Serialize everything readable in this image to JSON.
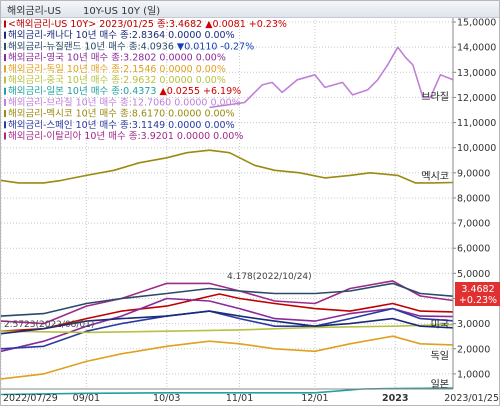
{
  "window": {
    "title": "해외금리-US",
    "subtitle": "10Y-US 10Y (일)"
  },
  "legend": [
    {
      "text": "<해외금리-US 10Y> 2023/01/25 종:3.4682",
      "change": "▲0.0081 +0.23%",
      "color": "#c00000",
      "change_color": "#d00000"
    },
    {
      "text": "해외금리-캐나다 10년 매수 종:2.8364 0.0000 0.00%",
      "change": "",
      "color": "#1a2a7a",
      "change_color": "#1a2a7a"
    },
    {
      "text": "해외금리-뉴질랜드 10년 매수 종:4.0936",
      "change": "▼0.0110 -0.27%",
      "color": "#2a4a6a",
      "change_color": "#1040c0"
    },
    {
      "text": "해외금리-영국 10년 매수 종:3.2802 0.0000 0.00%",
      "change": "",
      "color": "#8a2a9a",
      "change_color": "#8a2a9a"
    },
    {
      "text": "해외금리-독일 10년 매수 종:2.1546 0.0000 0.00%",
      "change": "",
      "color": "#e0a020",
      "change_color": "#e0a020"
    },
    {
      "text": "해외금리-중국 10년 매수 종:2.9632 0.0000 0.00%",
      "change": "",
      "color": "#b8c040",
      "change_color": "#b8c040"
    },
    {
      "text": "해외금리-일본 10년 매수 종:0.4373",
      "change": "▲0.0255 +6.19%",
      "color": "#20a0a0",
      "change_color": "#d00000"
    },
    {
      "text": "해외금리-브라질 10년 매수 종:12.7060 0.0000 0.00%",
      "change": "",
      "color": "#c080d8",
      "change_color": "#c080d8"
    },
    {
      "text": "해외금리-멕시코 10년 매수 종:8.6170 0.0000 0.00%",
      "change": "",
      "color": "#9a8a10",
      "change_color": "#9a8a10"
    },
    {
      "text": "해외금리-스페인 10년 매수 종:3.1149 0.0000 0.00%",
      "change": "",
      "color": "#2a3aa0",
      "change_color": "#2a3aa0"
    },
    {
      "text": "해외금리-이탈리아 10년 매수 종:3.9201 0.0000 0.00%",
      "change": "",
      "color": "#a02a8a",
      "change_color": "#a02a8a"
    }
  ],
  "annotations": {
    "high": "4.178(2022/10/24)",
    "low": "2.5723(2022/08/01)",
    "last_box_value": "3.4682",
    "last_box_change": "+0.23%"
  },
  "chart_data": {
    "type": "line",
    "title": "",
    "y_ticks": [
      "15,0000",
      "14,0000",
      "13,0000",
      "12,0000",
      "11,0000",
      "10,0000",
      "9,0000",
      "8,0000",
      "7,0000",
      "6,0000",
      "5,0000",
      "4,0000",
      "3,0000",
      "2,0000",
      "1,0000"
    ],
    "ylim": [
      0.4,
      15.2
    ],
    "x_ticks": [
      "2022/07/29",
      "09/01",
      "10/03",
      "11/01",
      "12/01",
      "2023",
      "2023/01/25"
    ],
    "grid": true,
    "x_start": "2022-07-29",
    "x_end": "2023-01-25",
    "series": [
      {
        "name": "브라질",
        "color": "#c080d8",
        "x": [
          "2022-10-20",
          "2022-10-27",
          "2022-11-03",
          "2022-11-10",
          "2022-11-14",
          "2022-11-18",
          "2022-11-24",
          "2022-12-01",
          "2022-12-05",
          "2022-12-12",
          "2022-12-16",
          "2022-12-22",
          "2022-12-26",
          "2022-12-30",
          "2023-01-03",
          "2023-01-06",
          "2023-01-09",
          "2023-01-13",
          "2023-01-16",
          "2023-01-20",
          "2023-01-25"
        ],
        "values": [
          11.6,
          11.7,
          11.8,
          12.5,
          12.6,
          12.2,
          12.7,
          12.9,
          12.4,
          12.6,
          12.1,
          12.3,
          12.7,
          13.3,
          14.0,
          13.6,
          13.3,
          12.0,
          12.0,
          12.9,
          12.706
        ]
      },
      {
        "name": "멕시코",
        "color": "#9a8a10",
        "x": [
          "2022-07-29",
          "2022-08-05",
          "2022-08-15",
          "2022-08-22",
          "2022-09-01",
          "2022-09-12",
          "2022-09-22",
          "2022-10-03",
          "2022-10-11",
          "2022-10-20",
          "2022-10-28",
          "2022-11-07",
          "2022-11-15",
          "2022-11-25",
          "2022-12-05",
          "2022-12-15",
          "2022-12-23",
          "2023-01-03",
          "2023-01-10",
          "2023-01-17",
          "2023-01-25"
        ],
        "values": [
          8.7,
          8.6,
          8.6,
          8.7,
          8.9,
          9.1,
          9.4,
          9.6,
          9.8,
          9.9,
          9.8,
          9.3,
          9.1,
          9.0,
          8.8,
          8.9,
          9.0,
          8.9,
          8.6,
          8.6,
          8.617
        ]
      },
      {
        "name": "이탈리아",
        "color": "#a02a8a",
        "x": [
          "2022-07-29",
          "2022-08-15",
          "2022-09-01",
          "2022-09-15",
          "2022-10-03",
          "2022-10-20",
          "2022-11-01",
          "2022-11-15",
          "2022-12-01",
          "2022-12-15",
          "2023-01-01",
          "2023-01-12",
          "2023-01-25"
        ],
        "values": [
          3.1,
          3.0,
          3.7,
          4.0,
          4.6,
          4.6,
          4.3,
          3.9,
          3.8,
          4.4,
          4.7,
          4.1,
          3.92
        ]
      },
      {
        "name": "미국",
        "color": "#c00000",
        "x": [
          "2022-07-29",
          "2022-08-15",
          "2022-09-01",
          "2022-09-15",
          "2022-10-03",
          "2022-10-24",
          "2022-11-01",
          "2022-11-15",
          "2022-12-01",
          "2022-12-15",
          "2023-01-01",
          "2023-01-12",
          "2023-01-25"
        ],
        "values": [
          2.7,
          2.8,
          3.2,
          3.5,
          3.7,
          4.178,
          4.0,
          3.8,
          3.6,
          3.5,
          3.8,
          3.5,
          3.468
        ]
      },
      {
        "name": "뉴질랜드",
        "color": "#2a4a6a",
        "x": [
          "2022-07-29",
          "2022-08-15",
          "2022-09-01",
          "2022-09-15",
          "2022-10-03",
          "2022-10-20",
          "2022-11-01",
          "2022-11-15",
          "2022-12-01",
          "2022-12-15",
          "2023-01-01",
          "2023-01-12",
          "2023-01-25"
        ],
        "values": [
          3.3,
          3.4,
          3.8,
          4.0,
          4.2,
          4.4,
          4.3,
          4.2,
          4.2,
          4.3,
          4.6,
          4.2,
          4.094
        ]
      },
      {
        "name": "영국",
        "color": "#8a2a9a",
        "x": [
          "2022-07-29",
          "2022-08-15",
          "2022-09-01",
          "2022-09-15",
          "2022-10-03",
          "2022-10-20",
          "2022-11-01",
          "2022-11-15",
          "2022-12-01",
          "2022-12-15",
          "2023-01-01",
          "2023-01-12",
          "2023-01-25"
        ],
        "values": [
          1.9,
          2.3,
          2.9,
          3.3,
          4.0,
          3.9,
          3.6,
          3.2,
          3.1,
          3.4,
          3.6,
          3.3,
          3.28
        ]
      },
      {
        "name": "스페인",
        "color": "#2a3aa0",
        "x": [
          "2022-07-29",
          "2022-08-15",
          "2022-09-01",
          "2022-09-15",
          "2022-10-03",
          "2022-10-20",
          "2022-11-01",
          "2022-11-15",
          "2022-12-01",
          "2022-12-15",
          "2023-01-01",
          "2023-01-12",
          "2023-01-25"
        ],
        "values": [
          2.0,
          2.1,
          2.7,
          3.0,
          3.3,
          3.5,
          3.2,
          2.9,
          2.9,
          3.2,
          3.6,
          3.2,
          3.115
        ]
      },
      {
        "name": "중국",
        "color": "#b8c040",
        "x": [
          "2022-07-29",
          "2022-09-01",
          "2022-10-03",
          "2022-11-01",
          "2022-12-01",
          "2023-01-01",
          "2023-01-25"
        ],
        "values": [
          2.7,
          2.65,
          2.7,
          2.75,
          2.85,
          2.9,
          2.963
        ]
      },
      {
        "name": "캐나다",
        "color": "#1a2a7a",
        "x": [
          "2022-07-29",
          "2022-08-15",
          "2022-09-01",
          "2022-09-15",
          "2022-10-03",
          "2022-10-20",
          "2022-11-01",
          "2022-11-15",
          "2022-12-01",
          "2022-12-15",
          "2023-01-01",
          "2023-01-12",
          "2023-01-25"
        ],
        "values": [
          2.6,
          2.8,
          3.1,
          3.2,
          3.3,
          3.5,
          3.3,
          3.1,
          2.9,
          3.0,
          3.2,
          2.9,
          2.836
        ]
      },
      {
        "name": "독일",
        "color": "#e0a020",
        "x": [
          "2022-07-29",
          "2022-08-15",
          "2022-09-01",
          "2022-09-15",
          "2022-10-03",
          "2022-10-20",
          "2022-11-01",
          "2022-11-15",
          "2022-12-01",
          "2022-12-15",
          "2023-01-01",
          "2023-01-12",
          "2023-01-25"
        ],
        "values": [
          0.8,
          1.0,
          1.5,
          1.8,
          2.1,
          2.3,
          2.2,
          2.0,
          1.9,
          2.2,
          2.5,
          2.2,
          2.155
        ]
      },
      {
        "name": "일본",
        "color": "#20a0a0",
        "x": [
          "2022-07-29",
          "2022-09-01",
          "2022-10-03",
          "2022-11-01",
          "2022-12-01",
          "2022-12-20",
          "2023-01-01",
          "2023-01-25"
        ],
        "values": [
          0.18,
          0.23,
          0.25,
          0.25,
          0.25,
          0.4,
          0.42,
          0.437
        ]
      }
    ],
    "end_labels": [
      "브라질",
      "멕시코",
      "미국",
      "독일",
      "일본"
    ]
  }
}
